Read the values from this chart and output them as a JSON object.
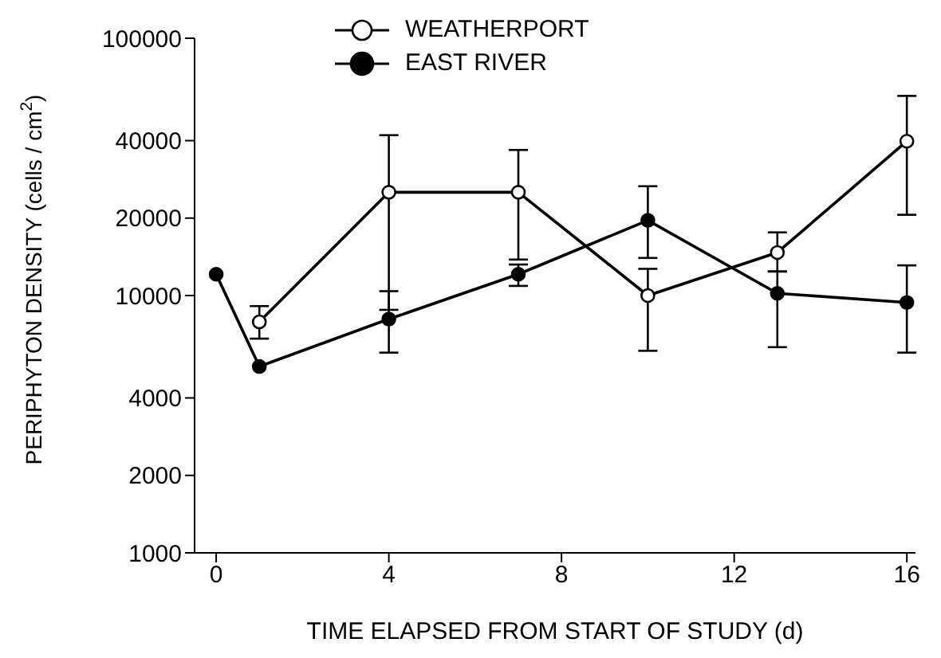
{
  "chart_data": {
    "type": "line",
    "xlabel": "TIME ELAPSED FROM START OF STUDY (d)",
    "ylabel": "PERIPHYTON DENSITY (cells / cm$^{2}$)",
    "log": "y",
    "xlim": [
      -0.5,
      16.2
    ],
    "xticks": [
      0,
      4,
      8,
      12,
      16
    ],
    "ylim": [
      1000,
      100000
    ],
    "yticks": [
      1000,
      2000,
      4000,
      10000,
      20000,
      40000,
      100000
    ],
    "legend": "top",
    "marker": "circle",
    "line_style": "solid",
    "series": [
      {
        "name": "WEATHERPORT",
        "color": "#000000",
        "x": [
          1,
          4,
          7,
          10,
          13,
          16
        ],
        "values": [
          7900,
          25200,
          25200,
          10000,
          14700,
          39800
        ],
        "errors": [
          [
            6800,
            9100
          ],
          [
            8800,
            42000
          ],
          [
            13800,
            36800
          ],
          [
            6100,
            12700
          ],
          [
            12400,
            17600
          ],
          [
            20600,
            59700
          ]
        ]
      },
      {
        "name": "EAST RIVER",
        "color": "#000000",
        "x": [
          0,
          1,
          4,
          7,
          10,
          13,
          16
        ],
        "values": [
          12100,
          5300,
          8100,
          12100,
          19600,
          10200,
          9400
        ],
        "errors": [
          null,
          null,
          [
            6000,
            10400
          ],
          [
            10900,
            13200
          ],
          [
            14000,
            26600
          ],
          [
            6300,
            12400
          ],
          [
            6000,
            13100
          ]
        ]
      }
    ]
  }
}
